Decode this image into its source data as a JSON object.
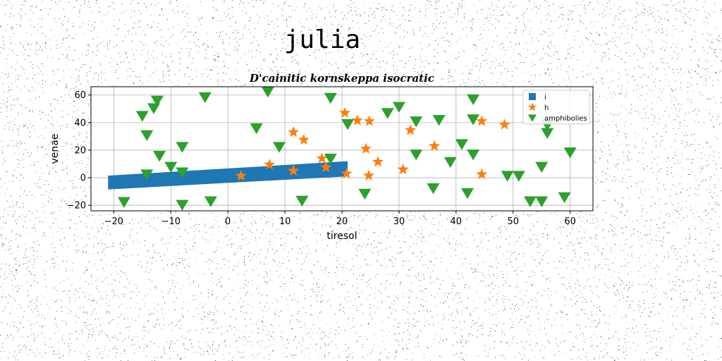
{
  "page": {
    "title": "julia"
  },
  "chart_data": {
    "type": "scatter",
    "title": "D'cainitic kornskeppa isocratic",
    "xlabel": "tiresol",
    "ylabel": "venae",
    "xlim": [
      -24,
      64
    ],
    "ylim": [
      -24,
      66
    ],
    "xticks": [
      -20,
      -10,
      0,
      10,
      20,
      30,
      40,
      50,
      60
    ],
    "yticks": [
      -20,
      0,
      20,
      40,
      60
    ],
    "grid": true,
    "legend_position": "top-right",
    "colors": {
      "i": "#1f77b4",
      "h": "#ff7f0e",
      "amphibolies": "#2ca02c"
    },
    "series": [
      {
        "name": "i",
        "kind": "band",
        "x": [
          -21,
          21
        ],
        "upper": [
          1.5,
          12
        ],
        "lower": [
          -8.5,
          1
        ]
      },
      {
        "name": "h",
        "kind": "star",
        "points": [
          [
            2.3,
            1.3
          ],
          [
            7.3,
            9.5
          ],
          [
            11.5,
            5
          ],
          [
            11.5,
            33
          ],
          [
            13.3,
            27.5
          ],
          [
            16.5,
            14
          ],
          [
            17.2,
            7.5
          ],
          [
            20.5,
            47
          ],
          [
            20.8,
            3
          ],
          [
            22.7,
            41.5
          ],
          [
            24.2,
            21
          ],
          [
            24.7,
            1.5
          ],
          [
            24.8,
            41
          ],
          [
            26.3,
            11.5
          ],
          [
            30.7,
            6
          ],
          [
            32,
            34.5
          ],
          [
            36.2,
            23
          ],
          [
            44.5,
            41
          ],
          [
            44.5,
            2.5
          ],
          [
            48.5,
            38.5
          ]
        ]
      },
      {
        "name": "amphibolies",
        "kind": "triangle-down",
        "points": [
          [
            -18.2,
            -17.5
          ],
          [
            -15,
            45
          ],
          [
            -14.2,
            31
          ],
          [
            -14.2,
            2.5
          ],
          [
            -13,
            50.5
          ],
          [
            -12.4,
            56
          ],
          [
            -12,
            16
          ],
          [
            -10,
            8
          ],
          [
            -8,
            -19.5
          ],
          [
            -8,
            22.5
          ],
          [
            -8,
            4
          ],
          [
            -4,
            58.5
          ],
          [
            -3,
            -17
          ],
          [
            5,
            36
          ],
          [
            7,
            62.5
          ],
          [
            9,
            22.5
          ],
          [
            13,
            -16.5
          ],
          [
            18,
            14
          ],
          [
            18,
            58
          ],
          [
            21,
            39
          ],
          [
            24,
            -11.5
          ],
          [
            28,
            47
          ],
          [
            30,
            51.5
          ],
          [
            33,
            41
          ],
          [
            33,
            17
          ],
          [
            36,
            -7.5
          ],
          [
            37,
            42
          ],
          [
            39,
            11.5
          ],
          [
            41,
            24.5
          ],
          [
            42,
            -11
          ],
          [
            43,
            57
          ],
          [
            43,
            17
          ],
          [
            43,
            42.5
          ],
          [
            49,
            1.5
          ],
          [
            51,
            1.5
          ],
          [
            53,
            -17
          ],
          [
            55,
            -17
          ],
          [
            55,
            8
          ],
          [
            56,
            32.5
          ],
          [
            56,
            38.5
          ],
          [
            59,
            -14
          ],
          [
            60,
            18.5
          ]
        ]
      }
    ]
  }
}
